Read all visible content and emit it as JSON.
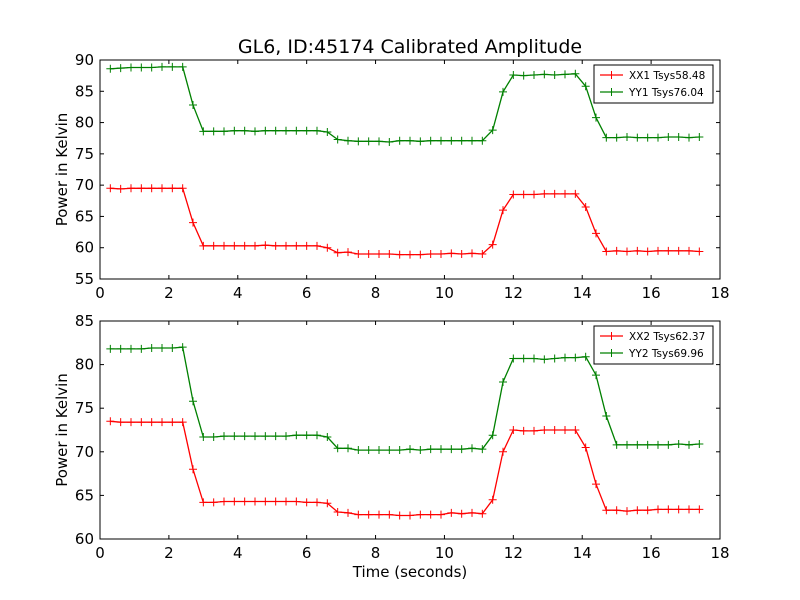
{
  "figure": {
    "title": "GL6, ID:45174 Calibrated Amplitude"
  },
  "chart_data": [
    {
      "type": "line",
      "ylabel": "Power in Kelvin",
      "xlabel": "",
      "xlim": [
        0,
        18
      ],
      "ylim": [
        55,
        90
      ],
      "xticks": [
        0,
        2,
        4,
        6,
        8,
        10,
        12,
        14,
        16,
        18
      ],
      "yticks": [
        55,
        60,
        65,
        70,
        75,
        80,
        85,
        90
      ],
      "legend_position": "top-right",
      "marker": "+",
      "x": [
        0.3,
        0.6,
        0.9,
        1.2,
        1.5,
        1.8,
        2.1,
        2.4,
        2.7,
        3.0,
        3.3,
        3.6,
        3.9,
        4.2,
        4.5,
        4.8,
        5.1,
        5.4,
        5.7,
        6.0,
        6.3,
        6.6,
        6.9,
        7.2,
        7.5,
        7.8,
        8.1,
        8.4,
        8.7,
        9.0,
        9.3,
        9.6,
        9.9,
        10.2,
        10.5,
        10.8,
        11.1,
        11.4,
        11.7,
        12.0,
        12.3,
        12.6,
        12.9,
        13.2,
        13.5,
        13.8,
        14.1,
        14.4,
        14.7,
        15.0,
        15.3,
        15.6,
        15.9,
        16.2,
        16.5,
        16.8,
        17.1,
        17.4
      ],
      "series": [
        {
          "name": "XX1 Tsys58.48",
          "color": "#ff0000",
          "values": [
            69.5,
            69.4,
            69.5,
            69.5,
            69.5,
            69.5,
            69.5,
            69.5,
            64.0,
            60.3,
            60.3,
            60.3,
            60.3,
            60.3,
            60.3,
            60.4,
            60.3,
            60.3,
            60.3,
            60.3,
            60.3,
            60.0,
            59.2,
            59.3,
            59.0,
            59.0,
            59.0,
            59.0,
            58.9,
            58.9,
            58.9,
            59.0,
            59.0,
            59.1,
            59.0,
            59.1,
            59.0,
            60.5,
            66.0,
            68.5,
            68.5,
            68.5,
            68.6,
            68.6,
            68.6,
            68.6,
            66.5,
            62.3,
            59.4,
            59.5,
            59.4,
            59.5,
            59.4,
            59.5,
            59.5,
            59.5,
            59.5,
            59.4
          ]
        },
        {
          "name": "YY1 Tsys76.04",
          "color": "#008000",
          "values": [
            88.6,
            88.7,
            88.8,
            88.8,
            88.8,
            88.9,
            88.9,
            88.9,
            82.8,
            78.6,
            78.6,
            78.6,
            78.7,
            78.7,
            78.6,
            78.7,
            78.7,
            78.7,
            78.7,
            78.7,
            78.7,
            78.5,
            77.3,
            77.1,
            77.0,
            77.0,
            77.0,
            76.9,
            77.1,
            77.1,
            77.0,
            77.1,
            77.1,
            77.1,
            77.1,
            77.1,
            77.1,
            78.8,
            84.9,
            87.6,
            87.5,
            87.6,
            87.7,
            87.6,
            87.7,
            87.8,
            85.8,
            80.8,
            77.6,
            77.6,
            77.7,
            77.6,
            77.6,
            77.6,
            77.7,
            77.7,
            77.6,
            77.7
          ]
        }
      ]
    },
    {
      "type": "line",
      "ylabel": "Power in Kelvin",
      "xlabel": "Time (seconds)",
      "xlim": [
        0,
        18
      ],
      "ylim": [
        60,
        85
      ],
      "xticks": [
        0,
        2,
        4,
        6,
        8,
        10,
        12,
        14,
        16,
        18
      ],
      "yticks": [
        60,
        65,
        70,
        75,
        80,
        85
      ],
      "legend_position": "top-right",
      "marker": "+",
      "x": [
        0.3,
        0.6,
        0.9,
        1.2,
        1.5,
        1.8,
        2.1,
        2.4,
        2.7,
        3.0,
        3.3,
        3.6,
        3.9,
        4.2,
        4.5,
        4.8,
        5.1,
        5.4,
        5.7,
        6.0,
        6.3,
        6.6,
        6.9,
        7.2,
        7.5,
        7.8,
        8.1,
        8.4,
        8.7,
        9.0,
        9.3,
        9.6,
        9.9,
        10.2,
        10.5,
        10.8,
        11.1,
        11.4,
        11.7,
        12.0,
        12.3,
        12.6,
        12.9,
        13.2,
        13.5,
        13.8,
        14.1,
        14.4,
        14.7,
        15.0,
        15.3,
        15.6,
        15.9,
        16.2,
        16.5,
        16.8,
        17.1,
        17.4
      ],
      "series": [
        {
          "name": "XX2 Tsys62.37",
          "color": "#ff0000",
          "values": [
            73.5,
            73.4,
            73.4,
            73.4,
            73.4,
            73.4,
            73.4,
            73.4,
            68.0,
            64.2,
            64.2,
            64.3,
            64.3,
            64.3,
            64.3,
            64.3,
            64.3,
            64.3,
            64.3,
            64.2,
            64.2,
            64.1,
            63.1,
            63.0,
            62.8,
            62.8,
            62.8,
            62.8,
            62.7,
            62.7,
            62.8,
            62.8,
            62.8,
            63.0,
            62.9,
            63.0,
            62.9,
            64.5,
            70.0,
            72.5,
            72.4,
            72.4,
            72.5,
            72.5,
            72.5,
            72.5,
            70.5,
            66.3,
            63.3,
            63.3,
            63.2,
            63.3,
            63.3,
            63.4,
            63.4,
            63.4,
            63.4,
            63.4
          ]
        },
        {
          "name": "YY2 Tsys69.96",
          "color": "#008000",
          "values": [
            81.8,
            81.8,
            81.8,
            81.8,
            81.9,
            81.9,
            81.9,
            82.0,
            75.8,
            71.7,
            71.7,
            71.8,
            71.8,
            71.8,
            71.8,
            71.8,
            71.8,
            71.8,
            71.9,
            71.9,
            71.9,
            71.7,
            70.4,
            70.4,
            70.2,
            70.2,
            70.2,
            70.2,
            70.2,
            70.3,
            70.2,
            70.3,
            70.3,
            70.3,
            70.3,
            70.4,
            70.3,
            71.9,
            78.0,
            80.7,
            80.7,
            80.7,
            80.6,
            80.7,
            80.8,
            80.8,
            80.9,
            78.8,
            74.1,
            70.8,
            70.8,
            70.8,
            70.8,
            70.8,
            70.8,
            70.9,
            70.8,
            70.9
          ]
        }
      ]
    }
  ]
}
